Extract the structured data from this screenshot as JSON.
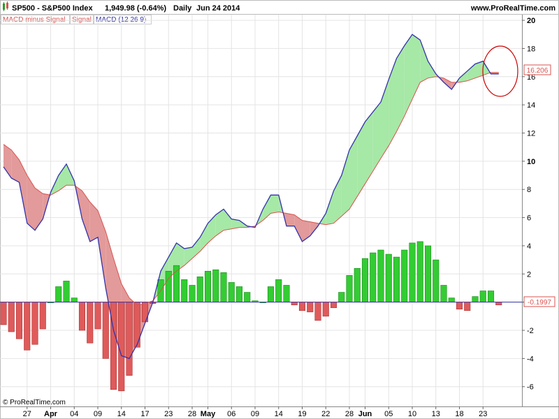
{
  "header": {
    "symbol": "SP500 - S&P500 Index",
    "price": "1,949.98 (-0.64%)",
    "period": "Daily",
    "date": "Jun 24 2014",
    "site": "www.ProRealTime.com"
  },
  "legend": [
    {
      "label": "MACD minus Signal",
      "color": "#d9534f"
    },
    {
      "label": "Signal",
      "color": "#d9534f"
    },
    {
      "label": "MACD (12 26 9)",
      "color": "#3333aa"
    }
  ],
  "footer": {
    "copyright": "© ProRealTime.com"
  },
  "value_tags": {
    "macd_last": "16.206",
    "histogram_last": "-0.1997"
  },
  "colors": {
    "macd": "#3333aa",
    "signal": "#d9534f",
    "fill_bull": "#a6e8a6",
    "fill_bear": "#e29a9a",
    "bar_pos": "#33cc33",
    "bar_neg": "#e05a5a",
    "zero_line": "#3333aa",
    "annotation": "#cc0000"
  },
  "chart_data": {
    "type": "line",
    "title": "",
    "xlabel": "",
    "ylabel": "",
    "ylim": [
      -7.4,
      20.4
    ],
    "yticks": [
      20,
      18,
      16,
      14,
      12,
      10,
      8,
      6,
      4,
      2,
      0,
      -2,
      -4,
      -6
    ],
    "x_tick_labels": [
      "27",
      "Apr",
      "04",
      "09",
      "14",
      "17",
      "23",
      "28",
      "May",
      "06",
      "09",
      "14",
      "19",
      "22",
      "28",
      "Jun",
      "05",
      "10",
      "13",
      "18",
      "23"
    ],
    "x_tick_positions": [
      3,
      6,
      9,
      12,
      15,
      18,
      21,
      24,
      26,
      29,
      32,
      35,
      38,
      41,
      44,
      46,
      49,
      52,
      55,
      58,
      61
    ],
    "num_points": 64,
    "series": [
      {
        "name": "MACD (12 26 9)",
        "values": [
          9.6,
          8.8,
          8.5,
          5.6,
          5.1,
          5.9,
          7.8,
          9.0,
          9.8,
          8.6,
          5.9,
          4.3,
          4.6,
          1.0,
          -2.0,
          -3.8,
          -4.0,
          -3.0,
          -1.5,
          0.0,
          2.2,
          3.2,
          4.2,
          3.8,
          3.9,
          4.6,
          5.6,
          6.2,
          6.6,
          5.9,
          5.8,
          5.4,
          5.3,
          6.6,
          7.6,
          7.6,
          5.4,
          5.4,
          4.3,
          4.7,
          5.4,
          6.3,
          7.9,
          9.0,
          10.8,
          11.8,
          12.8,
          13.5,
          14.2,
          15.8,
          17.3,
          18.2,
          19.0,
          18.6,
          17.1,
          16.2,
          15.6,
          15.1,
          15.9,
          16.4,
          16.9,
          17.1,
          16.2,
          16.2
        ],
        "values_comment": "last value shown by tag 16.206"
      },
      {
        "name": "Signal",
        "values": [
          11.2,
          10.8,
          10.1,
          9.0,
          8.1,
          7.7,
          7.6,
          7.9,
          8.3,
          8.3,
          7.9,
          7.1,
          6.5,
          5.0,
          3.1,
          1.3,
          0.3,
          -0.2,
          -0.1,
          0.1,
          0.8,
          1.7,
          2.2,
          2.6,
          3.1,
          3.6,
          4.2,
          4.7,
          5.1,
          5.2,
          5.3,
          5.3,
          5.4,
          5.8,
          6.3,
          6.4,
          6.3,
          6.2,
          5.8,
          5.7,
          5.6,
          5.5,
          5.6,
          6.1,
          6.6,
          7.5,
          8.4,
          9.3,
          10.2,
          11.1,
          12.1,
          13.2,
          14.4,
          15.6,
          15.9,
          16.0,
          15.9,
          15.6,
          15.6,
          15.7,
          15.9,
          16.1,
          16.3,
          16.3
        ]
      },
      {
        "name": "MACD minus Signal",
        "values": [
          -1.6,
          -2.1,
          -2.6,
          -3.4,
          -3.0,
          -1.9,
          0.0,
          1.1,
          1.5,
          0.3,
          -2.0,
          -2.9,
          -1.9,
          -4.0,
          -6.2,
          -6.3,
          -5.2,
          -3.2,
          -1.4,
          -0.1,
          1.6,
          2.2,
          2.6,
          1.6,
          1.2,
          1.8,
          2.2,
          2.3,
          2.1,
          1.4,
          1.1,
          0.7,
          0.1,
          0.0,
          1.1,
          1.6,
          1.2,
          -0.2,
          -0.6,
          -0.7,
          -1.3,
          -1.0,
          -0.4,
          0.7,
          1.9,
          2.4,
          3.1,
          3.5,
          3.7,
          3.4,
          3.2,
          3.7,
          4.2,
          4.3,
          4.0,
          3.0,
          1.2,
          0.3,
          -0.5,
          -0.6,
          0.4,
          0.8,
          0.8,
          -0.2
        ],
        "type": "bar"
      }
    ],
    "grid": true,
    "legend_position": "top-left",
    "annotations": [
      "circle around latest MACD/Signal values"
    ]
  }
}
